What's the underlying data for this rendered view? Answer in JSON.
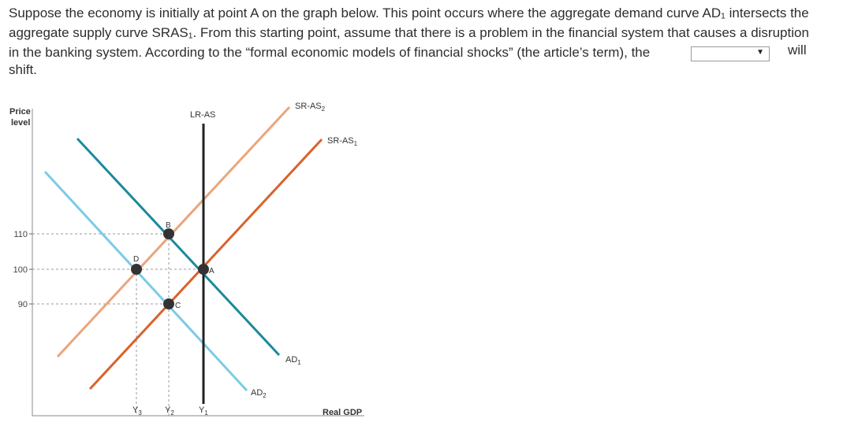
{
  "question": {
    "line1": "Suppose the economy is initially at point A on the graph below. This point occurs where the aggregate demand curve AD₁ intersects the",
    "line2": "aggregate supply curve SRAS₁. From this starting point, assume that there is a problem in the financial system that causes a disruption",
    "line3": "in the banking system. According to the “formal economic models of financial shocks” (the article’s term), the",
    "will": "will",
    "shift": "shift.",
    "dropdown_value": ""
  },
  "chart_data": {
    "type": "line",
    "ylabel_line1": "Price",
    "ylabel_line2": "level",
    "xlabel": "Real GDP",
    "y_ticks": [
      110,
      100,
      90
    ],
    "x_ticks": [
      {
        "base": "Y",
        "sub": "3"
      },
      {
        "base": "Y",
        "sub": "2"
      },
      {
        "base": "Y",
        "sub": "1"
      }
    ],
    "curve_labels": {
      "lras": "LR-AS",
      "sras2": {
        "base": "SR-AS",
        "sub": "2"
      },
      "sras1": {
        "base": "SR-AS",
        "sub": "1"
      },
      "ad1": {
        "base": "AD",
        "sub": "1"
      },
      "ad2": {
        "base": "AD",
        "sub": "2"
      }
    },
    "points": [
      {
        "label": "A",
        "x": "Y1",
        "y": 100
      },
      {
        "label": "B",
        "x": "Y2",
        "y": 110
      },
      {
        "label": "C",
        "x": "Y2",
        "y": 90
      },
      {
        "label": "D",
        "x": "Y3",
        "y": 100
      }
    ],
    "colors": {
      "ad1": "#1a8a9a",
      "ad2": "#7ccbe6",
      "sras1": "#d9622b",
      "sras2": "#eaa57c",
      "lras": "#222222",
      "point": "#333333"
    }
  }
}
